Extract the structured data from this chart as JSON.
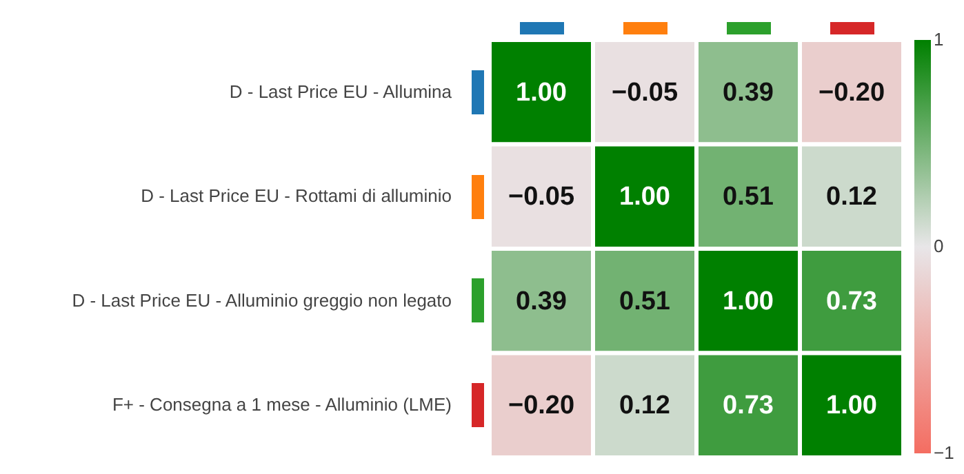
{
  "chart_data": {
    "type": "heatmap",
    "categories": [
      null,
      null,
      null,
      null
    ],
    "y_categories": [
      "D - Last Price EU - Allumina",
      "D - Last Price EU - Rottami di alluminio",
      "D - Last Price EU - Alluminio greggio non legato",
      "F+ - Consegna a 1 mese - Alluminio (LME)"
    ],
    "cells": [
      [
        1.0,
        -0.05,
        0.39,
        -0.2
      ],
      [
        -0.05,
        1.0,
        0.51,
        0.12
      ],
      [
        0.39,
        0.51,
        1.0,
        0.73
      ],
      [
        -0.2,
        0.12,
        0.73,
        1.0
      ]
    ],
    "cell_labels": [
      [
        "1.00",
        "−0.05",
        "0.39",
        "−0.20"
      ],
      [
        "−0.05",
        "1.00",
        "0.51",
        "0.12"
      ],
      [
        "0.39",
        "0.51",
        "1.00",
        "0.73"
      ],
      [
        "−0.20",
        "0.12",
        "0.73",
        "1.00"
      ]
    ],
    "clim": [
      -1,
      1
    ],
    "cticks": [
      -1,
      0,
      1
    ],
    "data_labels": true,
    "tick_labels": "y"
  }
}
